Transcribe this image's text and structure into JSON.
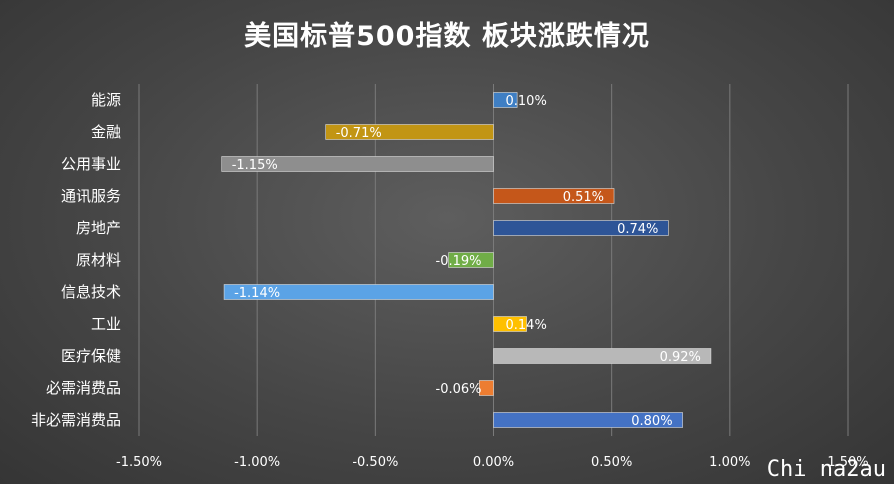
{
  "chart_data": {
    "type": "bar",
    "orientation": "horizontal",
    "title": "美国标普500指数 板块涨跌情况",
    "categories": [
      "能源",
      "金融",
      "公用事业",
      "通讯服务",
      "房地产",
      "原材料",
      "信息技术",
      "工业",
      "医疗保健",
      "必需消费品",
      "非必需消费品"
    ],
    "values": [
      0.1,
      -0.71,
      -1.15,
      0.51,
      0.74,
      -0.19,
      -1.14,
      0.14,
      0.92,
      -0.06,
      0.8
    ],
    "value_labels": [
      "0.10%",
      "-0.71%",
      "-1.15%",
      "0.51%",
      "0.74%",
      "-0.19%",
      "-1.14%",
      "0.14%",
      "0.92%",
      "-0.06%",
      "0.80%"
    ],
    "bar_colors": [
      "#3f7fc4",
      "#c29514",
      "#8e8e8e",
      "#c5571a",
      "#2e5597",
      "#70ad47",
      "#5ba3e6",
      "#ffc000",
      "#b8b8b8",
      "#ed7d31",
      "#4472c4"
    ],
    "xlim": [
      -1.5,
      1.5
    ],
    "x_ticks": [
      -1.5,
      -1.0,
      -0.5,
      0.0,
      0.5,
      1.0,
      1.5
    ],
    "x_tick_labels": [
      "-1.50%",
      "-1.00%",
      "-0.50%",
      "0.00%",
      "0.50%",
      "1.00%",
      "1.50%"
    ],
    "grid": true,
    "legend": "none"
  },
  "watermark": "Chi na2au"
}
